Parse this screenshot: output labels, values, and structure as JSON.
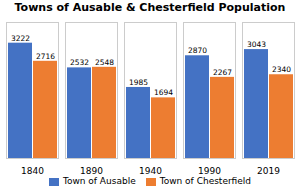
{
  "chart_data": {
    "type": "bar",
    "title": "Towns of Ausable & Chesterfield Population",
    "categories": [
      "1840",
      "1890",
      "1940",
      "1990",
      "2019"
    ],
    "series": [
      {
        "name": "Town of Ausable",
        "color": "#4472C4",
        "values": [
          3222,
          2532,
          1985,
          2870,
          3043
        ]
      },
      {
        "name": "Town of Chesterfield",
        "color": "#ED7D31",
        "values": [
          2716,
          2548,
          1694,
          2267,
          2340
        ]
      }
    ],
    "ylim": [
      0,
      3800
    ],
    "data_labels": true,
    "tick_labels": "x",
    "legend": "bottom"
  }
}
